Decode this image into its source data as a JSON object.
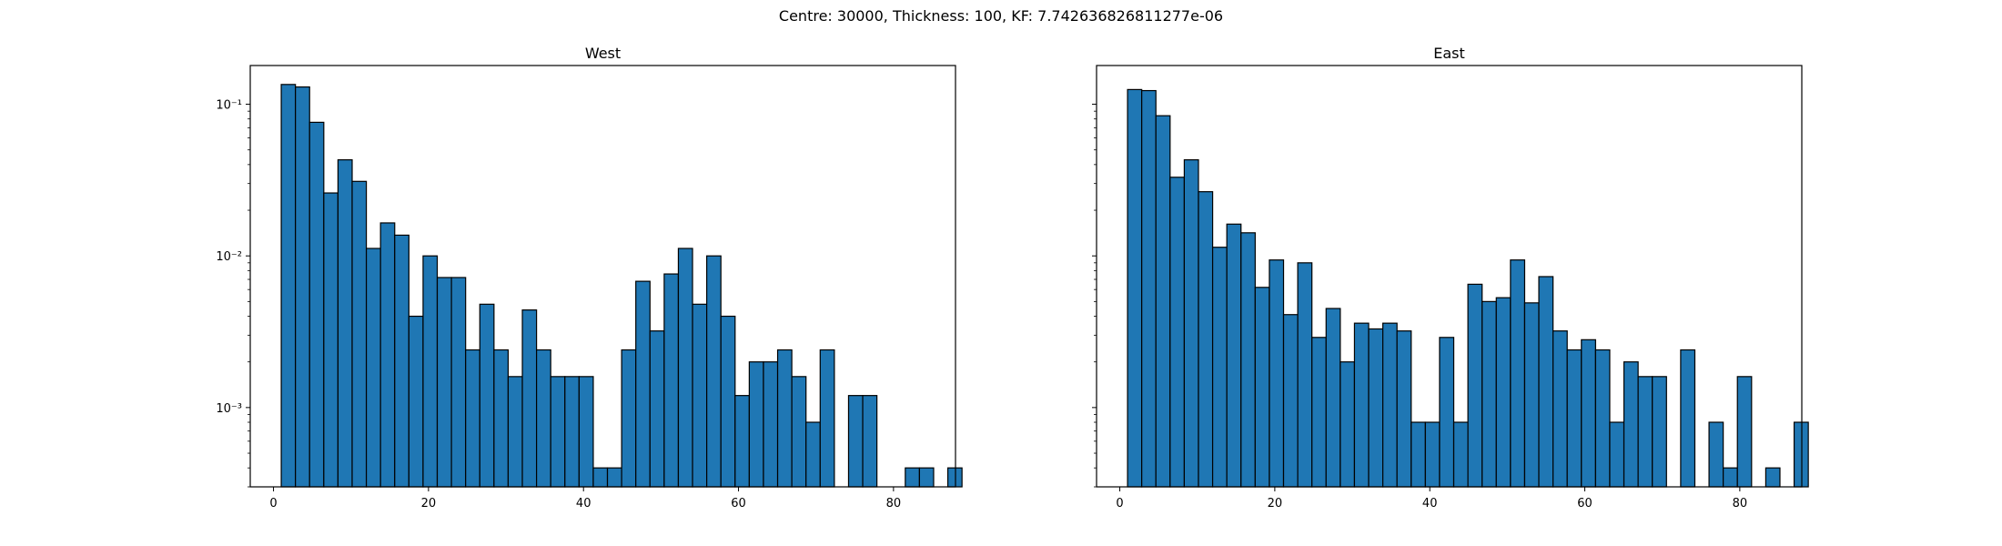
{
  "suptitle": "Centre: 30000, Thickness: 100, KF: 7.742636826811277e-06",
  "colors": {
    "bar_fill": "#1f77b4",
    "bar_edge": "#000000",
    "axes": "#000000"
  },
  "chart_data": [
    {
      "type": "bar",
      "title": "West",
      "yscale": "log",
      "xlim": [
        -3,
        88
      ],
      "ylim": [
        0.0003,
        0.18
      ],
      "xticks": [
        0,
        20,
        40,
        60,
        80
      ],
      "xtick_labels": [
        "0",
        "20",
        "40",
        "60",
        "80"
      ],
      "yticks": [
        0.001,
        0.01,
        0.1
      ],
      "ytick_labels": [
        "10⁻³",
        "10⁻²",
        "10⁻¹"
      ],
      "y_labels_shown": true,
      "bin_width": 1.83,
      "bin_start": 1,
      "values": [
        0.135,
        0.13,
        0.076,
        0.026,
        0.043,
        0.031,
        0.0112,
        0.0165,
        0.0137,
        0.004,
        0.01,
        0.0072,
        0.0072,
        0.0024,
        0.0048,
        0.0024,
        0.0016,
        0.0044,
        0.0024,
        0.0016,
        0.0016,
        0.0016,
        0.0004,
        0.0004,
        0.0024,
        0.0068,
        0.0032,
        0.0076,
        0.0112,
        0.0048,
        0.01,
        0.004,
        0.0012,
        0.002,
        0.002,
        0.0024,
        0.0016,
        0.0008,
        0.0024,
        0,
        0.0012,
        0.0012,
        0,
        0,
        0.0004,
        0.0004,
        0,
        0.0004
      ]
    },
    {
      "type": "bar",
      "title": "East",
      "yscale": "log",
      "xlim": [
        -3,
        88
      ],
      "ylim": [
        0.0003,
        0.18
      ],
      "xticks": [
        0,
        20,
        40,
        60,
        80
      ],
      "xtick_labels": [
        "0",
        "20",
        "40",
        "60",
        "80"
      ],
      "yticks": [
        0.001,
        0.01,
        0.1
      ],
      "ytick_labels": [
        "",
        "",
        ""
      ],
      "y_labels_shown": false,
      "bin_width": 1.83,
      "bin_start": 1,
      "values": [
        0.125,
        0.123,
        0.084,
        0.033,
        0.043,
        0.0265,
        0.0114,
        0.0162,
        0.0142,
        0.0062,
        0.0094,
        0.0041,
        0.009,
        0.0029,
        0.0045,
        0.002,
        0.0036,
        0.0033,
        0.0036,
        0.0032,
        0.0008,
        0.0008,
        0.0029,
        0.0008,
        0.0065,
        0.005,
        0.0053,
        0.0094,
        0.0049,
        0.0073,
        0.0032,
        0.0024,
        0.0028,
        0.0024,
        0.0008,
        0.002,
        0.0016,
        0.0016,
        0,
        0.0024,
        0,
        0.0008,
        0.0004,
        0.0016,
        0,
        0.0004,
        0,
        0.0008
      ]
    }
  ]
}
